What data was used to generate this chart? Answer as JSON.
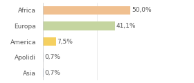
{
  "categories": [
    "Africa",
    "Europa",
    "America",
    "Apolidi",
    "Asia"
  ],
  "values": [
    50.0,
    41.1,
    7.5,
    0.7,
    0.7
  ],
  "labels": [
    "50,0%",
    "41,1%",
    "7,5%",
    "0,7%",
    "0,7%"
  ],
  "bar_colors": [
    "#f0c090",
    "#c5d5a0",
    "#f5d060",
    "#d8dde8",
    "#a8bcd8"
  ],
  "background_color": "#ffffff",
  "xlim": [
    0,
    62
  ],
  "label_fontsize": 6.5,
  "tick_fontsize": 6.5
}
